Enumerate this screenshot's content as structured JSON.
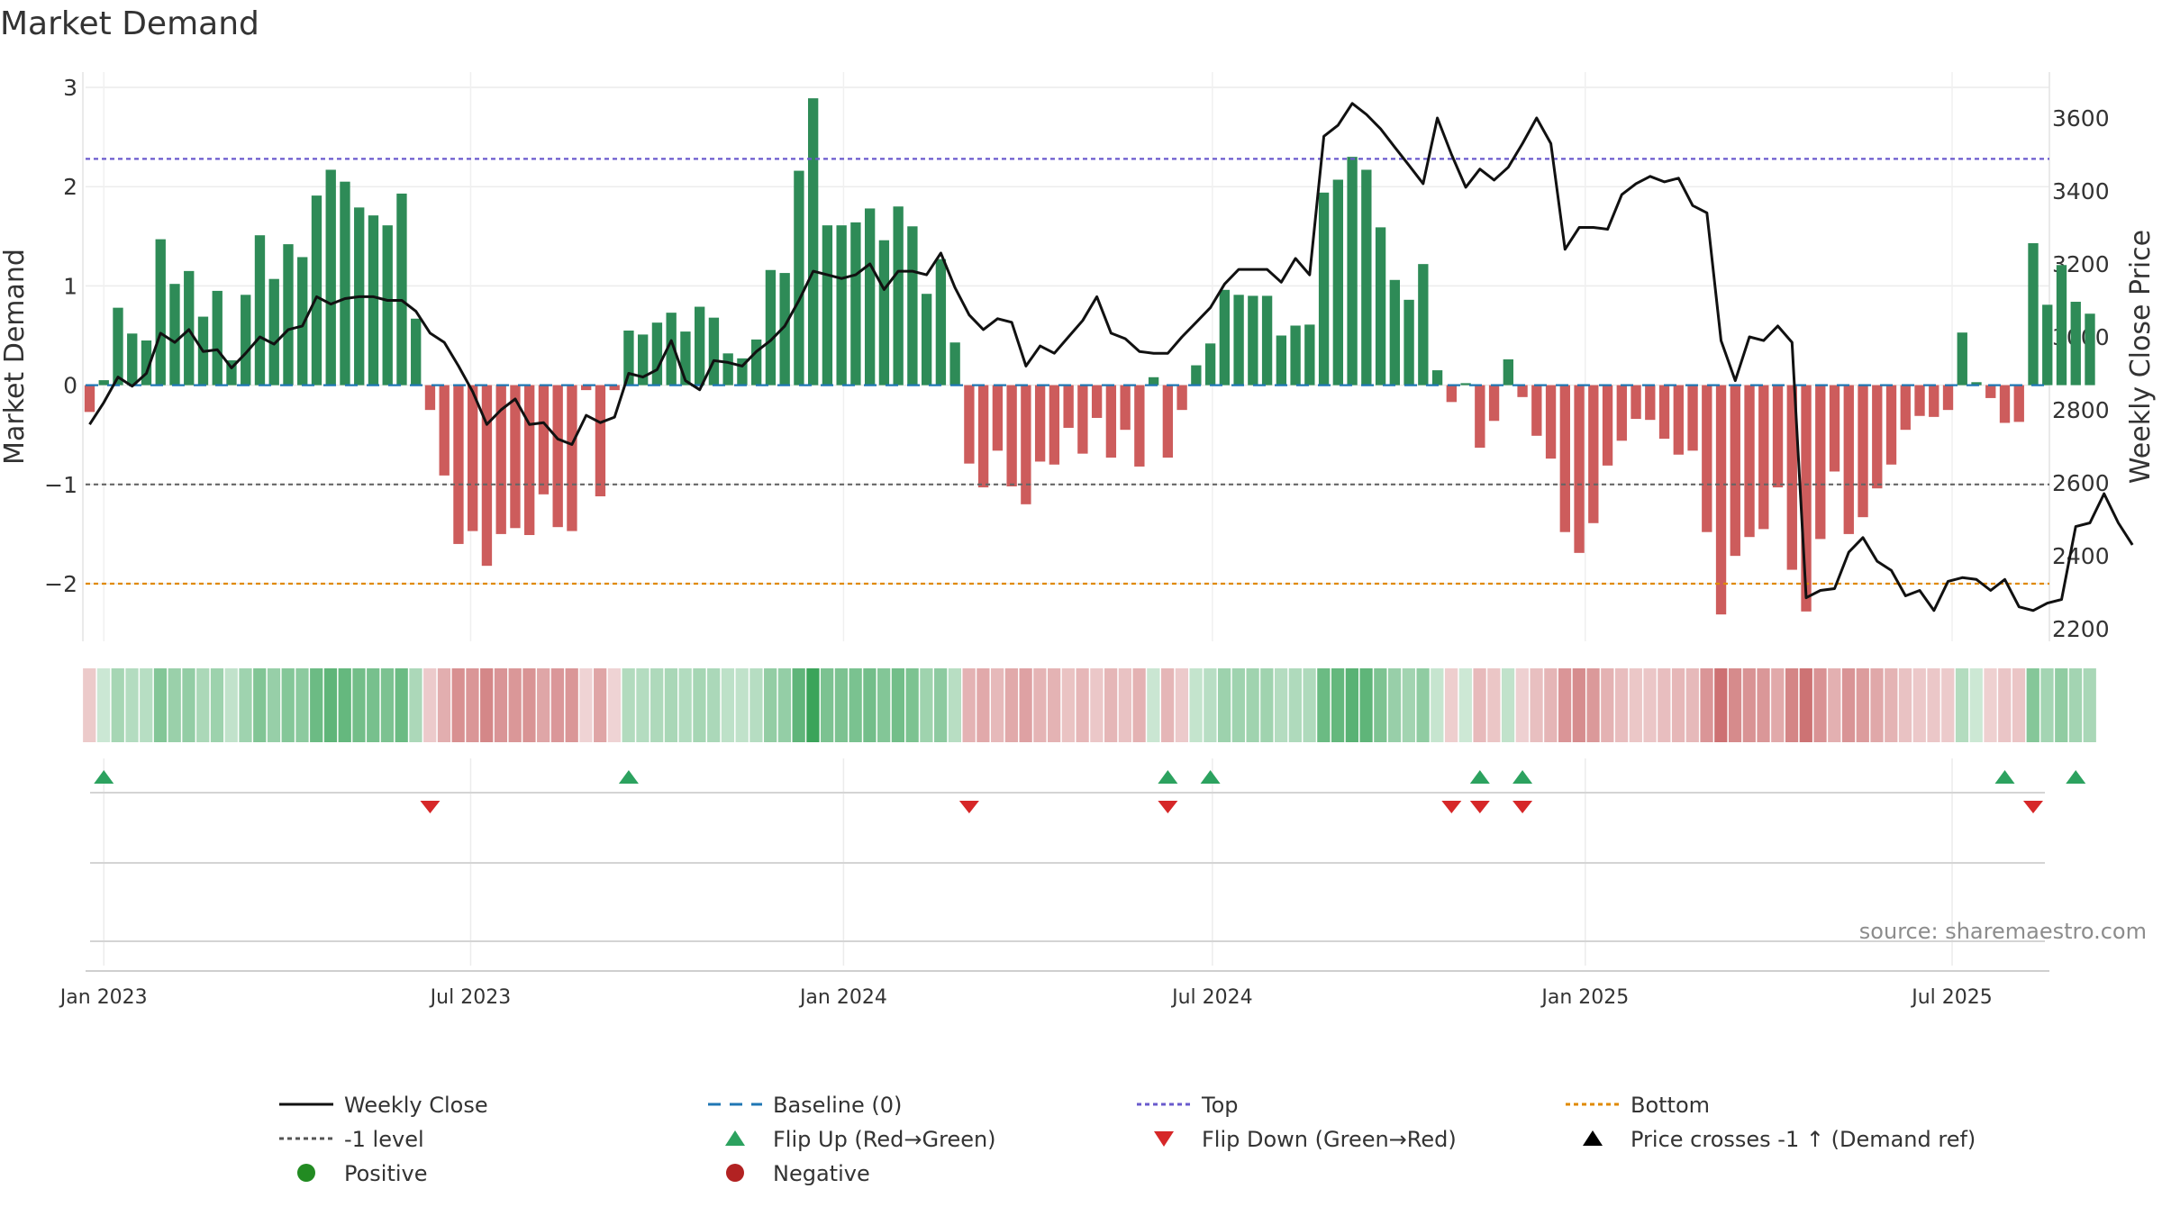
{
  "chart_data": {
    "type": "bar",
    "title": "Market Demand",
    "ylabel": "Market Demand",
    "y2label": "Weekly Close Price",
    "ylim": [
      -2.6,
      3.2
    ],
    "y2lim": [
      2170,
      3700
    ],
    "yticks": [
      "3",
      "2",
      "1",
      "0",
      "−1",
      "−2"
    ],
    "yticks_values": [
      3,
      2,
      1,
      0,
      -1,
      -2
    ],
    "y2ticks": [
      "3600",
      "3400",
      "3200",
      "3000",
      "2800",
      "2600",
      "2400",
      "2200"
    ],
    "y2ticks_values": [
      3600,
      3400,
      3200,
      3000,
      2800,
      2600,
      2400,
      2200
    ],
    "x_start": "2022-12-25",
    "week_step_days": 7,
    "xlim_days": [
      -2,
      967
    ],
    "xticks": [
      {
        "label": "Jan 2023",
        "day": 7
      },
      {
        "label": "Jul 2023",
        "day": 188
      },
      {
        "label": "Jan 2024",
        "day": 372
      },
      {
        "label": "Jul 2024",
        "day": 554
      },
      {
        "label": "Jan 2025",
        "day": 738
      },
      {
        "label": "Jul 2025",
        "day": 919
      }
    ],
    "reference_lines": {
      "top": 2.28,
      "minus_one": -1,
      "bottom": -2,
      "baseline": 0
    },
    "series": [
      {
        "name": "Market Demand",
        "type": "bar",
        "values": [
          -0.27,
          0.05,
          0.78,
          0.52,
          0.45,
          1.47,
          1.02,
          1.15,
          0.69,
          0.95,
          0.25,
          0.91,
          1.51,
          1.07,
          1.42,
          1.29,
          1.91,
          2.17,
          2.05,
          1.79,
          1.71,
          1.61,
          1.93,
          0.67,
          -0.25,
          -0.91,
          -1.6,
          -1.47,
          -1.82,
          -1.5,
          -1.44,
          -1.51,
          -1.1,
          -1.43,
          -1.47,
          -0.05,
          -1.12,
          -0.05,
          0.55,
          0.51,
          0.63,
          0.73,
          0.54,
          0.79,
          0.68,
          0.32,
          0.27,
          0.46,
          1.16,
          1.13,
          2.16,
          2.89,
          1.61,
          1.61,
          1.64,
          1.78,
          1.46,
          1.8,
          1.6,
          0.92,
          1.27,
          0.43,
          -0.79,
          -1.03,
          -0.66,
          -1.02,
          -1.2,
          -0.77,
          -0.8,
          -0.43,
          -0.69,
          -0.33,
          -0.73,
          -0.45,
          -0.82,
          0.08,
          -0.73,
          -0.25,
          0.2,
          0.42,
          0.96,
          0.91,
          0.9,
          0.9,
          0.5,
          0.6,
          0.61,
          1.94,
          2.07,
          2.3,
          2.17,
          1.59,
          1.06,
          0.86,
          1.22,
          0.15,
          -0.17,
          0.02,
          -0.63,
          -0.36,
          0.26,
          -0.12,
          -0.51,
          -0.74,
          -1.48,
          -1.69,
          -1.39,
          -0.81,
          -0.56,
          -0.34,
          -0.35,
          -0.54,
          -0.7,
          -0.66,
          -1.48,
          -2.31,
          -1.72,
          -1.53,
          -1.45,
          -1.03,
          -1.86,
          -2.28,
          -1.55,
          -0.87,
          -1.5,
          -1.33,
          -1.04,
          -0.8,
          -0.45,
          -0.31,
          -0.32,
          -0.25,
          0.53,
          0.03,
          -0.13,
          -0.38,
          -0.37,
          1.43,
          0.81,
          1.21,
          0.84,
          0.72
        ]
      },
      {
        "name": "Weekly Close",
        "type": "line",
        "values": [
          2760,
          2820,
          2890,
          2865,
          2900,
          3010,
          2985,
          3020,
          2960,
          2965,
          2915,
          2955,
          3000,
          2980,
          3020,
          3030,
          3110,
          3090,
          3105,
          3110,
          3110,
          3100,
          3100,
          3070,
          3010,
          2985,
          2920,
          2850,
          2760,
          2800,
          2830,
          2760,
          2765,
          2720,
          2705,
          2785,
          2765,
          2780,
          2900,
          2890,
          2910,
          2990,
          2880,
          2855,
          2935,
          2930,
          2920,
          2960,
          2990,
          3030,
          3100,
          3180,
          3170,
          3160,
          3170,
          3200,
          3130,
          3180,
          3180,
          3170,
          3230,
          3135,
          3060,
          3020,
          3050,
          3040,
          2920,
          2975,
          2955,
          3000,
          3045,
          3110,
          3010,
          2995,
          2960,
          2955,
          2955,
          3000,
          3040,
          3080,
          3145,
          3185,
          3185,
          3185,
          3150,
          3215,
          3170,
          3550,
          3580,
          3640,
          3610,
          3570,
          3520,
          3470,
          3420,
          3600,
          3500,
          3410,
          3460,
          3430,
          3465,
          3530,
          3600,
          3530,
          3240,
          3300,
          3300,
          3295,
          3390,
          3420,
          3440,
          3425,
          3435,
          3360,
          3340,
          2990,
          2880,
          3000,
          2990,
          3030,
          2985,
          2285,
          2305,
          2310,
          2410,
          2450,
          2385,
          2360,
          2290,
          2305,
          2250,
          2330,
          2340,
          2335,
          2305,
          2335,
          2260,
          2250,
          2270,
          2280,
          2480,
          2490,
          2570,
          2490,
          2430
        ]
      }
    ],
    "flip_up_weeks": [
      1,
      38,
      76,
      79,
      98,
      101,
      135,
      140
    ],
    "flip_down_weeks": [
      24,
      62,
      76,
      96,
      98,
      101,
      137
    ],
    "strip_color_scale": {
      "green": "#3aa45a",
      "red": "#c4585a",
      "max_abs": 2.9
    },
    "source_text": "source: sharemaestro.com",
    "colors": {
      "positive_bar": "#2e8b57",
      "negative_bar": "#cd5c5c",
      "close_line": "#111111",
      "baseline": "#1f77b4",
      "top_line": "#6a5acd",
      "minus_one_line": "#666666",
      "bottom_line": "#e08a00",
      "flip_up": "#2ca25f",
      "flip_down": "#d62728"
    },
    "legend": [
      {
        "label": "Weekly Close",
        "kind": "line",
        "color": "#111111"
      },
      {
        "label": "Baseline (0)",
        "kind": "dash",
        "color": "#1f77b4"
      },
      {
        "label": "Top",
        "kind": "dot",
        "color": "#6a5acd"
      },
      {
        "label": "Bottom",
        "kind": "dot",
        "color": "#e08a00"
      },
      {
        "label": "-1 level",
        "kind": "dot",
        "color": "#555555"
      },
      {
        "label": "Flip Up (Red→Green)",
        "kind": "triangle-up",
        "color": "#2ca25f"
      },
      {
        "label": "Flip Down (Green→Red)",
        "kind": "triangle-down",
        "color": "#d62728"
      },
      {
        "label": "Price crosses -1 ↑ (Demand ref)",
        "kind": "triangle-up",
        "color": "#000000"
      },
      {
        "label": "Positive",
        "kind": "circle",
        "color": "#228b22"
      },
      {
        "label": "Negative",
        "kind": "circle",
        "color": "#b22222"
      }
    ]
  }
}
